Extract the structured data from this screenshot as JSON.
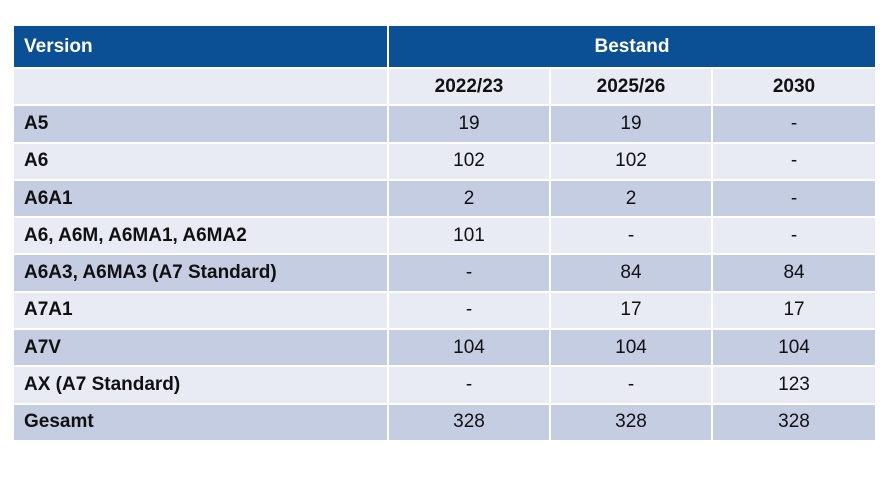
{
  "table": {
    "header": {
      "version": "Version",
      "bestand": "Bestand"
    },
    "years": [
      "2022/23",
      "2025/26",
      "2030"
    ],
    "rows": [
      {
        "label": "A5",
        "values": [
          "19",
          "19",
          "-"
        ]
      },
      {
        "label": "A6",
        "values": [
          "102",
          "102",
          "-"
        ]
      },
      {
        "label": "A6A1",
        "values": [
          "2",
          "2",
          "-"
        ]
      },
      {
        "label": "A6, A6M, A6MA1, A6MA2",
        "values": [
          "101",
          "-",
          "-"
        ]
      },
      {
        "label": "A6A3, A6MA3 (A7 Standard)",
        "values": [
          "-",
          "84",
          "84"
        ]
      },
      {
        "label": "A7A1",
        "values": [
          "-",
          "17",
          "17"
        ]
      },
      {
        "label": "A7V",
        "values": [
          "104",
          "104",
          "104"
        ]
      },
      {
        "label": "AX (A7 Standard)",
        "values": [
          "-",
          "-",
          "123"
        ]
      },
      {
        "label": "Gesamt",
        "values": [
          "328",
          "328",
          "328"
        ]
      }
    ]
  },
  "colors": {
    "header_bg": "#0b5094",
    "row_dark": "#c5cde3",
    "row_light": "#e8ebf4"
  }
}
